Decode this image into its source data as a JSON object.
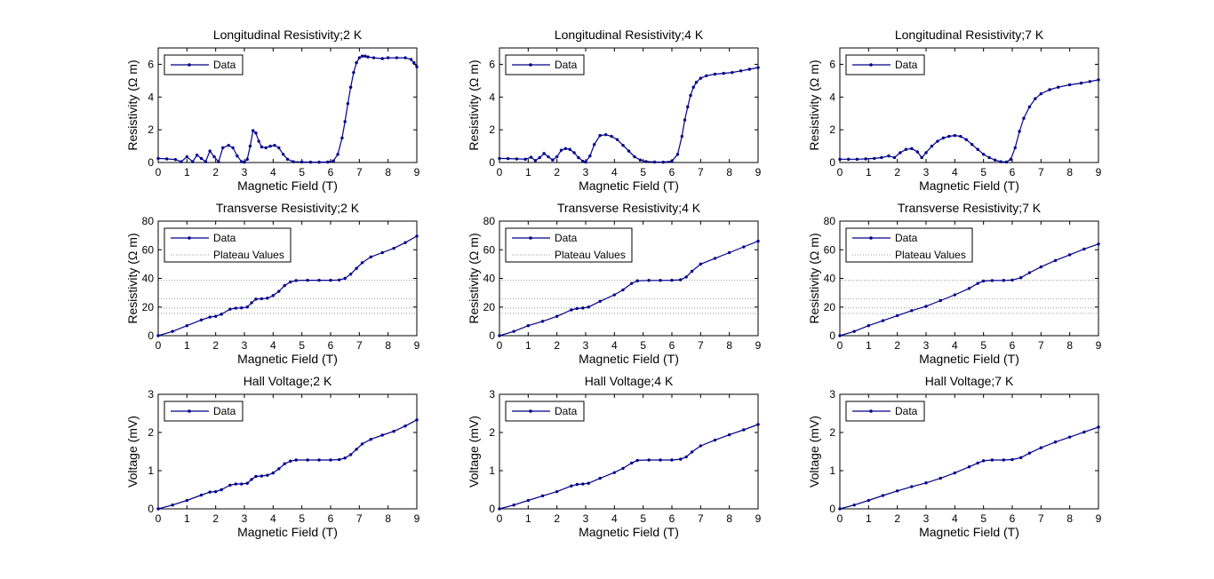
{
  "chart_data": [
    {
      "type": "line",
      "title": "Longitudinal Resistivity;2 K",
      "xlabel": "Magnetic Field (T)",
      "ylabel": "Resistivity (Ω m)",
      "xlim": [
        0,
        9
      ],
      "ylim": [
        0,
        7
      ],
      "xticks": [
        0,
        1,
        2,
        3,
        4,
        5,
        6,
        7,
        8,
        9
      ],
      "yticks": [
        0,
        2,
        4,
        6
      ],
      "legend": {
        "location": "top-left",
        "entries": [
          "Data"
        ]
      },
      "plateaus": [],
      "series": [
        {
          "name": "Data",
          "color": "#00008b",
          "x": [
            0,
            0.3,
            0.6,
            0.8,
            1.0,
            1.2,
            1.35,
            1.5,
            1.65,
            1.8,
            1.95,
            2.1,
            2.25,
            2.45,
            2.6,
            2.75,
            2.9,
            3.0,
            3.1,
            3.2,
            3.3,
            3.4,
            3.5,
            3.6,
            3.75,
            3.9,
            4.05,
            4.2,
            4.35,
            4.5,
            4.7,
            5.0,
            5.3,
            5.6,
            5.9,
            6.1,
            6.25,
            6.4,
            6.5,
            6.6,
            6.7,
            6.8,
            6.9,
            7.0,
            7.1,
            7.2,
            7.3,
            7.5,
            7.8,
            8.0,
            8.3,
            8.6,
            8.8,
            8.9,
            9.0
          ],
          "y": [
            0.25,
            0.22,
            0.18,
            0.05,
            0.35,
            0.05,
            0.45,
            0.25,
            0.05,
            0.7,
            0.35,
            0.05,
            0.9,
            1.05,
            0.9,
            0.4,
            0.05,
            0.02,
            0.2,
            1.0,
            1.95,
            1.8,
            1.3,
            0.95,
            0.9,
            1.0,
            1.05,
            0.9,
            0.5,
            0.2,
            0.05,
            0.03,
            0.02,
            0.02,
            0.03,
            0.1,
            0.5,
            1.5,
            2.5,
            3.6,
            4.6,
            5.5,
            6.1,
            6.4,
            6.5,
            6.5,
            6.45,
            6.4,
            6.35,
            6.4,
            6.4,
            6.4,
            6.3,
            6.1,
            5.85
          ]
        }
      ]
    },
    {
      "type": "line",
      "title": "Longitudinal Resistivity;4 K",
      "xlabel": "Magnetic Field (T)",
      "ylabel": "Resistivity (Ω m)",
      "xlim": [
        0,
        9
      ],
      "ylim": [
        0,
        7
      ],
      "xticks": [
        0,
        1,
        2,
        3,
        4,
        5,
        6,
        7,
        8,
        9
      ],
      "yticks": [
        0,
        2,
        4,
        6
      ],
      "legend": {
        "location": "top-left",
        "entries": [
          "Data"
        ]
      },
      "plateaus": [],
      "series": [
        {
          "name": "Data",
          "color": "#00008b",
          "x": [
            0,
            0.3,
            0.6,
            0.9,
            1.1,
            1.25,
            1.4,
            1.55,
            1.7,
            1.85,
            2.0,
            2.15,
            2.3,
            2.45,
            2.6,
            2.75,
            2.9,
            3.0,
            3.15,
            3.3,
            3.5,
            3.7,
            3.9,
            4.1,
            4.3,
            4.5,
            4.7,
            4.9,
            5.1,
            5.4,
            5.7,
            6.0,
            6.2,
            6.35,
            6.45,
            6.55,
            6.65,
            6.75,
            6.85,
            7.0,
            7.2,
            7.5,
            7.8,
            8.1,
            8.4,
            8.7,
            9.0
          ],
          "y": [
            0.25,
            0.24,
            0.22,
            0.2,
            0.32,
            0.12,
            0.3,
            0.55,
            0.35,
            0.15,
            0.35,
            0.75,
            0.85,
            0.8,
            0.6,
            0.3,
            0.08,
            0.03,
            0.4,
            1.1,
            1.65,
            1.7,
            1.6,
            1.4,
            1.05,
            0.7,
            0.35,
            0.15,
            0.06,
            0.03,
            0.02,
            0.08,
            0.5,
            1.6,
            2.6,
            3.4,
            4.1,
            4.6,
            4.9,
            5.15,
            5.3,
            5.4,
            5.45,
            5.5,
            5.6,
            5.7,
            5.8
          ]
        }
      ]
    },
    {
      "type": "line",
      "title": "Longitudinal Resistivity;7 K",
      "xlabel": "Magnetic Field (T)",
      "ylabel": "Resistivity (Ω m)",
      "xlim": [
        0,
        9
      ],
      "ylim": [
        0,
        7
      ],
      "xticks": [
        0,
        1,
        2,
        3,
        4,
        5,
        6,
        7,
        8,
        9
      ],
      "yticks": [
        0,
        2,
        4,
        6
      ],
      "legend": {
        "location": "top-left",
        "entries": [
          "Data"
        ]
      },
      "plateaus": [],
      "series": [
        {
          "name": "Data",
          "color": "#00008b",
          "x": [
            0,
            0.3,
            0.6,
            0.9,
            1.2,
            1.45,
            1.7,
            1.9,
            2.1,
            2.3,
            2.5,
            2.7,
            2.85,
            3.0,
            3.2,
            3.4,
            3.6,
            3.8,
            4.0,
            4.2,
            4.4,
            4.6,
            4.8,
            5.0,
            5.2,
            5.4,
            5.6,
            5.8,
            5.95,
            6.1,
            6.25,
            6.4,
            6.6,
            6.8,
            7.0,
            7.3,
            7.6,
            8.0,
            8.4,
            8.7,
            9.0
          ],
          "y": [
            0.2,
            0.2,
            0.2,
            0.22,
            0.25,
            0.3,
            0.4,
            0.3,
            0.6,
            0.8,
            0.85,
            0.65,
            0.3,
            0.6,
            1.0,
            1.3,
            1.5,
            1.6,
            1.65,
            1.6,
            1.4,
            1.1,
            0.8,
            0.5,
            0.3,
            0.15,
            0.05,
            0.03,
            0.2,
            0.9,
            1.9,
            2.7,
            3.4,
            3.9,
            4.2,
            4.45,
            4.6,
            4.75,
            4.85,
            4.95,
            5.05
          ]
        }
      ]
    },
    {
      "type": "line",
      "title": "Transverse Resistivity;2 K",
      "xlabel": "Magnetic Field (T)",
      "ylabel": "Resistivity (Ω m)",
      "xlim": [
        0,
        9
      ],
      "ylim": [
        0,
        80
      ],
      "xticks": [
        0,
        1,
        2,
        3,
        4,
        5,
        6,
        7,
        8,
        9
      ],
      "yticks": [
        0,
        20,
        40,
        60,
        80
      ],
      "legend": {
        "location": "top-left",
        "entries": [
          "Data",
          "Plateau Values"
        ]
      },
      "plateaus": [
        38.7,
        25.8,
        19.4,
        15.5
      ],
      "series": [
        {
          "name": "Data",
          "color": "#00008b",
          "x": [
            0,
            0.5,
            1.0,
            1.5,
            1.8,
            2.0,
            2.2,
            2.5,
            2.7,
            2.9,
            3.1,
            3.25,
            3.4,
            3.6,
            3.8,
            4.0,
            4.2,
            4.4,
            4.6,
            4.8,
            5.2,
            5.6,
            6.0,
            6.3,
            6.5,
            6.7,
            6.9,
            7.1,
            7.4,
            7.8,
            8.2,
            8.6,
            9.0
          ],
          "y": [
            0,
            3,
            7,
            11,
            13,
            13.5,
            15,
            18.5,
            19.2,
            19.4,
            20,
            23,
            25.5,
            25.8,
            26.2,
            28,
            31,
            35,
            37.5,
            38.5,
            38.7,
            38.7,
            38.7,
            38.9,
            40,
            43,
            47,
            51,
            55,
            58,
            61,
            65,
            69.5
          ]
        }
      ]
    },
    {
      "type": "line",
      "title": "Transverse Resistivity;4 K",
      "xlabel": "Magnetic Field (T)",
      "ylabel": "Resistivity (Ω m)",
      "xlim": [
        0,
        9
      ],
      "ylim": [
        0,
        80
      ],
      "xticks": [
        0,
        1,
        2,
        3,
        4,
        5,
        6,
        7,
        8,
        9
      ],
      "yticks": [
        0,
        20,
        40,
        60,
        80
      ],
      "legend": {
        "location": "top-left",
        "entries": [
          "Data",
          "Plateau Values"
        ]
      },
      "plateaus": [
        38.7,
        25.8,
        19.4,
        15.5
      ],
      "series": [
        {
          "name": "Data",
          "color": "#00008b",
          "x": [
            0,
            0.5,
            1.0,
            1.5,
            2.0,
            2.5,
            2.7,
            2.9,
            3.1,
            3.5,
            4.0,
            4.3,
            4.6,
            4.8,
            5.2,
            5.6,
            6.0,
            6.3,
            6.5,
            6.7,
            7.0,
            7.5,
            8.0,
            8.5,
            9.0
          ],
          "y": [
            0,
            3,
            7,
            10,
            13.5,
            18,
            19,
            19.3,
            20,
            24,
            28.5,
            32,
            36.5,
            38.3,
            38.6,
            38.6,
            38.7,
            39,
            41,
            45,
            50,
            54,
            58,
            62,
            66
          ]
        }
      ]
    },
    {
      "type": "line",
      "title": "Transverse Resistivity;7 K",
      "xlabel": "Magnetic Field (T)",
      "ylabel": "Resistivity (Ω m)",
      "xlim": [
        0,
        9
      ],
      "ylim": [
        0,
        80
      ],
      "xticks": [
        0,
        1,
        2,
        3,
        4,
        5,
        6,
        7,
        8,
        9
      ],
      "yticks": [
        0,
        20,
        40,
        60,
        80
      ],
      "legend": {
        "location": "top-left",
        "entries": [
          "Data",
          "Plateau Values"
        ]
      },
      "plateaus": [
        38.7,
        25.8,
        19.4,
        15.5
      ],
      "series": [
        {
          "name": "Data",
          "color": "#00008b",
          "x": [
            0,
            0.5,
            1.0,
            1.5,
            2.0,
            2.5,
            3.0,
            3.5,
            4.0,
            4.5,
            4.8,
            5.0,
            5.3,
            5.7,
            6.0,
            6.3,
            6.6,
            7.0,
            7.5,
            8.0,
            8.5,
            9.0
          ],
          "y": [
            0,
            3,
            7,
            10.5,
            14,
            17.5,
            20.5,
            24.5,
            28.5,
            33,
            36.5,
            38.2,
            38.5,
            38.6,
            38.8,
            40.5,
            44,
            48,
            52.5,
            56.5,
            60.5,
            64
          ]
        }
      ]
    },
    {
      "type": "line",
      "title": "Hall Voltage;2 K",
      "xlabel": "Magnetic Field (T)",
      "ylabel": "Voltage (mV)",
      "xlim": [
        0,
        9
      ],
      "ylim": [
        0,
        3
      ],
      "xticks": [
        0,
        1,
        2,
        3,
        4,
        5,
        6,
        7,
        8,
        9
      ],
      "yticks": [
        0,
        1,
        2,
        3
      ],
      "legend": {
        "location": "top-left",
        "entries": [
          "Data"
        ]
      },
      "plateaus": [],
      "series": [
        {
          "name": "Data",
          "color": "#00008b",
          "x": [
            0,
            0.5,
            1.0,
            1.5,
            1.8,
            2.0,
            2.2,
            2.5,
            2.7,
            2.9,
            3.1,
            3.25,
            3.4,
            3.6,
            3.8,
            4.0,
            4.2,
            4.4,
            4.6,
            4.8,
            5.2,
            5.6,
            6.0,
            6.3,
            6.5,
            6.7,
            6.9,
            7.1,
            7.4,
            7.8,
            8.2,
            8.6,
            9.0
          ],
          "y": [
            0,
            0.1,
            0.22,
            0.36,
            0.44,
            0.45,
            0.5,
            0.62,
            0.65,
            0.65,
            0.67,
            0.77,
            0.85,
            0.86,
            0.88,
            0.94,
            1.05,
            1.18,
            1.25,
            1.28,
            1.28,
            1.28,
            1.28,
            1.29,
            1.33,
            1.42,
            1.56,
            1.7,
            1.82,
            1.93,
            2.03,
            2.17,
            2.33
          ]
        }
      ]
    },
    {
      "type": "line",
      "title": "Hall Voltage;4 K",
      "xlabel": "Magnetic Field (T)",
      "ylabel": "Voltage (mV)",
      "xlim": [
        0,
        9
      ],
      "ylim": [
        0,
        3
      ],
      "xticks": [
        0,
        1,
        2,
        3,
        4,
        5,
        6,
        7,
        8,
        9
      ],
      "yticks": [
        0,
        1,
        2,
        3
      ],
      "legend": {
        "location": "top-left",
        "entries": [
          "Data"
        ]
      },
      "plateaus": [],
      "series": [
        {
          "name": "Data",
          "color": "#00008b",
          "x": [
            0,
            0.5,
            1.0,
            1.5,
            2.0,
            2.5,
            2.7,
            2.9,
            3.1,
            3.5,
            4.0,
            4.3,
            4.6,
            4.8,
            5.2,
            5.6,
            6.0,
            6.3,
            6.5,
            6.7,
            7.0,
            7.5,
            8.0,
            8.5,
            9.0
          ],
          "y": [
            0,
            0.1,
            0.22,
            0.34,
            0.45,
            0.6,
            0.64,
            0.65,
            0.67,
            0.8,
            0.95,
            1.06,
            1.2,
            1.27,
            1.28,
            1.28,
            1.28,
            1.3,
            1.36,
            1.49,
            1.65,
            1.8,
            1.94,
            2.07,
            2.21
          ]
        }
      ]
    },
    {
      "type": "line",
      "title": "Hall Voltage;7 K",
      "xlabel": "Magnetic Field (T)",
      "ylabel": "Voltage (mV)",
      "xlim": [
        0,
        9
      ],
      "ylim": [
        0,
        3
      ],
      "xticks": [
        0,
        1,
        2,
        3,
        4,
        5,
        6,
        7,
        8,
        9
      ],
      "yticks": [
        0,
        1,
        2,
        3
      ],
      "legend": {
        "location": "top-left",
        "entries": [
          "Data"
        ]
      },
      "plateaus": [],
      "series": [
        {
          "name": "Data",
          "color": "#00008b",
          "x": [
            0,
            0.5,
            1.0,
            1.5,
            2.0,
            2.5,
            3.0,
            3.5,
            4.0,
            4.5,
            4.8,
            5.0,
            5.3,
            5.7,
            6.0,
            6.3,
            6.6,
            7.0,
            7.5,
            8.0,
            8.5,
            9.0
          ],
          "y": [
            0,
            0.1,
            0.22,
            0.35,
            0.47,
            0.58,
            0.68,
            0.8,
            0.94,
            1.1,
            1.2,
            1.26,
            1.28,
            1.28,
            1.29,
            1.34,
            1.46,
            1.6,
            1.75,
            1.88,
            2.01,
            2.14
          ]
        }
      ]
    }
  ]
}
